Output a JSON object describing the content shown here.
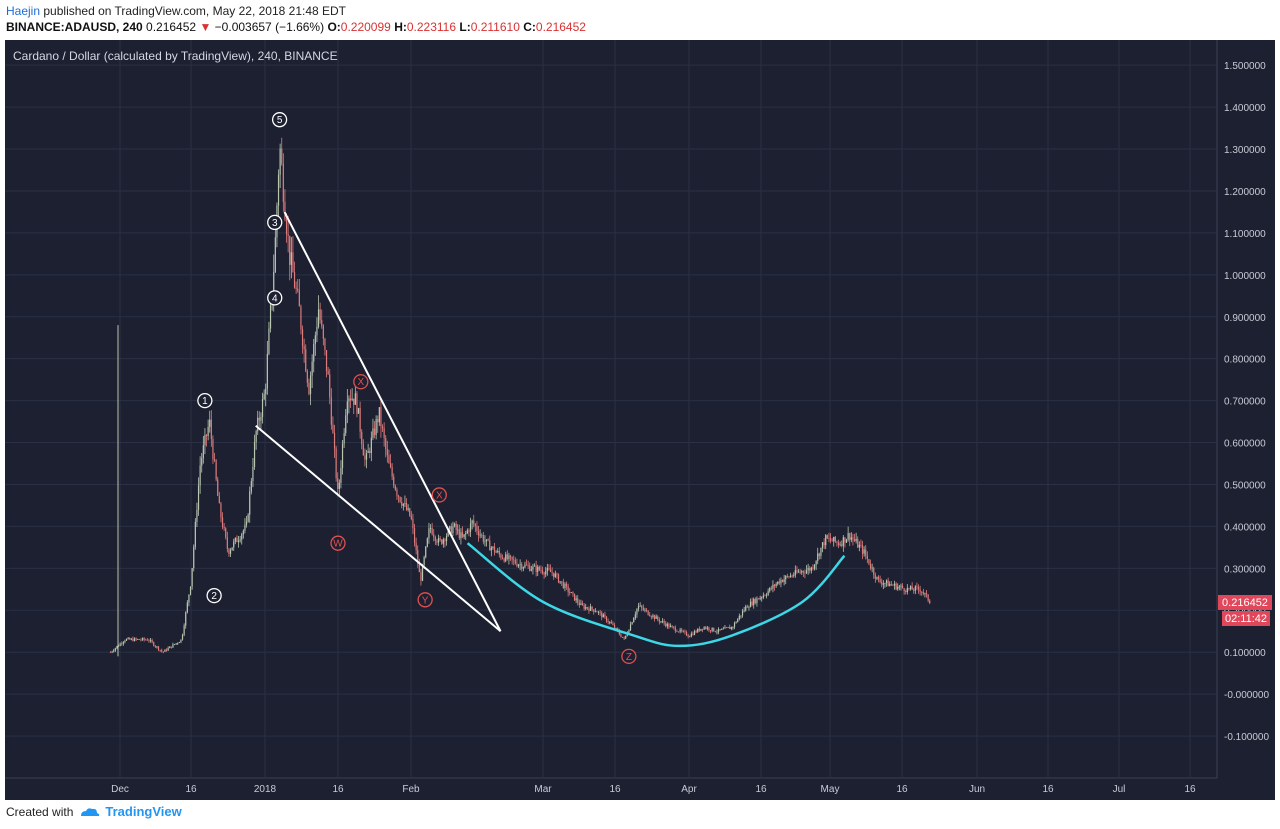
{
  "header": {
    "author": "Haejin",
    "published_text": "published on TradingView.com, May 22, 2018 21:48 EDT"
  },
  "ticker": {
    "symbol_line": "BINANCE:ADAUSD, 240",
    "last": "0.216452",
    "change": "−0.003657 (−1.66%)",
    "o_label": "O:",
    "o_value": "0.220099",
    "h_label": "H:",
    "h_value": "0.223116",
    "l_label": "L:",
    "l_value": "0.211610",
    "c_label": "C:",
    "c_value": "0.216452"
  },
  "footer": {
    "created_with": "Created with",
    "brand": "TradingView"
  },
  "colors": {
    "background": "#1c2030",
    "grid": "#2a3045",
    "axis_text": "#c8ccd6",
    "candle_up": "#b9c6b0",
    "candle_down": "#e07b7b",
    "wedge": "#ffffff",
    "cup": "#3ed7e6",
    "wave_red": "#e0504f",
    "price_tag": "#e0475a"
  },
  "chart_data": {
    "type": "line",
    "title": "Cardano / Dollar (calculated by TradingView), 240, BINANCE",
    "x_ticks": [
      "Dec",
      "16",
      "2018",
      "16",
      "Feb",
      "Mar",
      "16",
      "Apr",
      "16",
      "May",
      "16",
      "Jun",
      "16",
      "Jul",
      "16"
    ],
    "y_ticks": [
      "1.500000",
      "1.400000",
      "1.300000",
      "1.200000",
      "1.100000",
      "1.000000",
      "0.900000",
      "0.800000",
      "0.700000",
      "0.600000",
      "0.500000",
      "0.400000",
      "0.300000",
      "0.200000",
      "0.100000",
      "-0.000000",
      "-0.100000"
    ],
    "ylim": [
      -0.2,
      1.56
    ],
    "last_price": "0.216452",
    "countdown": "02:11:42",
    "price_path": [
      [
        "2017-11-29",
        0.1
      ],
      [
        "2017-12-02",
        0.13
      ],
      [
        "2017-12-07",
        0.13
      ],
      [
        "2017-12-10",
        0.1
      ],
      [
        "2017-12-14",
        0.13
      ],
      [
        "2017-12-16",
        0.27
      ],
      [
        "2017-12-18",
        0.55
      ],
      [
        "2017-12-20",
        0.65
      ],
      [
        "2017-12-22",
        0.45
      ],
      [
        "2017-12-24",
        0.34
      ],
      [
        "2017-12-28",
        0.4
      ],
      [
        "2017-12-30",
        0.62
      ],
      [
        "2018-01-01",
        0.72
      ],
      [
        "2018-01-03",
        1.05
      ],
      [
        "2018-01-04",
        1.31
      ],
      [
        "2018-01-06",
        1.05
      ],
      [
        "2018-01-08",
        0.92
      ],
      [
        "2018-01-10",
        0.73
      ],
      [
        "2018-01-12",
        0.92
      ],
      [
        "2018-01-14",
        0.75
      ],
      [
        "2018-01-16",
        0.47
      ],
      [
        "2018-01-18",
        0.72
      ],
      [
        "2018-01-20",
        0.7
      ],
      [
        "2018-01-22",
        0.55
      ],
      [
        "2018-01-25",
        0.67
      ],
      [
        "2018-01-27",
        0.55
      ],
      [
        "2018-01-29",
        0.48
      ],
      [
        "2018-02-01",
        0.42
      ],
      [
        "2018-02-03",
        0.27
      ],
      [
        "2018-02-05",
        0.4
      ],
      [
        "2018-02-07",
        0.36
      ],
      [
        "2018-02-10",
        0.4
      ],
      [
        "2018-02-12",
        0.37
      ],
      [
        "2018-02-14",
        0.41
      ],
      [
        "2018-02-17",
        0.36
      ],
      [
        "2018-02-20",
        0.33
      ],
      [
        "2018-02-24",
        0.31
      ],
      [
        "2018-02-27",
        0.3
      ],
      [
        "2018-03-03",
        0.29
      ],
      [
        "2018-03-06",
        0.25
      ],
      [
        "2018-03-09",
        0.21
      ],
      [
        "2018-03-12",
        0.2
      ],
      [
        "2018-03-15",
        0.17
      ],
      [
        "2018-03-18",
        0.13
      ],
      [
        "2018-03-21",
        0.21
      ],
      [
        "2018-03-25",
        0.18
      ],
      [
        "2018-03-28",
        0.16
      ],
      [
        "2018-04-01",
        0.14
      ],
      [
        "2018-04-04",
        0.16
      ],
      [
        "2018-04-07",
        0.15
      ],
      [
        "2018-04-10",
        0.16
      ],
      [
        "2018-04-13",
        0.21
      ],
      [
        "2018-04-17",
        0.24
      ],
      [
        "2018-04-20",
        0.27
      ],
      [
        "2018-04-24",
        0.29
      ],
      [
        "2018-04-27",
        0.3
      ],
      [
        "2018-04-30",
        0.37
      ],
      [
        "2018-05-03",
        0.36
      ],
      [
        "2018-05-05",
        0.38
      ],
      [
        "2018-05-08",
        0.34
      ],
      [
        "2018-05-11",
        0.27
      ],
      [
        "2018-05-14",
        0.26
      ],
      [
        "2018-05-17",
        0.25
      ],
      [
        "2018-05-20",
        0.25
      ],
      [
        "2018-05-22",
        0.22
      ]
    ],
    "wedge_upper": [
      [
        "2018-01-05",
        1.15
      ],
      [
        "2018-02-20",
        0.15
      ]
    ],
    "wedge_lower": [
      [
        "2017-12-30",
        0.64
      ],
      [
        "2018-02-20",
        0.15
      ]
    ],
    "cup_curve": [
      [
        "2018-02-13",
        0.36
      ],
      [
        "2018-03-01",
        0.22
      ],
      [
        "2018-03-20",
        0.14
      ],
      [
        "2018-03-30",
        0.115
      ],
      [
        "2018-04-10",
        0.14
      ],
      [
        "2018-04-25",
        0.22
      ],
      [
        "2018-05-04",
        0.33
      ]
    ],
    "wave_labels": [
      {
        "label": "1",
        "date": "2017-12-19",
        "value": 0.7,
        "color": "white"
      },
      {
        "label": "2",
        "date": "2017-12-21",
        "value": 0.235,
        "color": "white"
      },
      {
        "label": "3",
        "date": "2018-01-03",
        "value": 1.125,
        "color": "white"
      },
      {
        "label": "4",
        "date": "2018-01-03",
        "value": 0.945,
        "color": "white"
      },
      {
        "label": "5",
        "date": "2018-01-04",
        "value": 1.37,
        "color": "white"
      },
      {
        "label": "W",
        "date": "2018-01-16",
        "value": 0.36,
        "color": "red"
      },
      {
        "label": "X",
        "date": "2018-01-21",
        "value": 0.745,
        "color": "red"
      },
      {
        "label": "Y",
        "date": "2018-02-04",
        "value": 0.225,
        "color": "red"
      },
      {
        "label": "X",
        "date": "2018-02-07",
        "value": 0.475,
        "color": "red"
      },
      {
        "label": "Z",
        "date": "2018-03-19",
        "value": 0.09,
        "color": "red"
      }
    ]
  }
}
